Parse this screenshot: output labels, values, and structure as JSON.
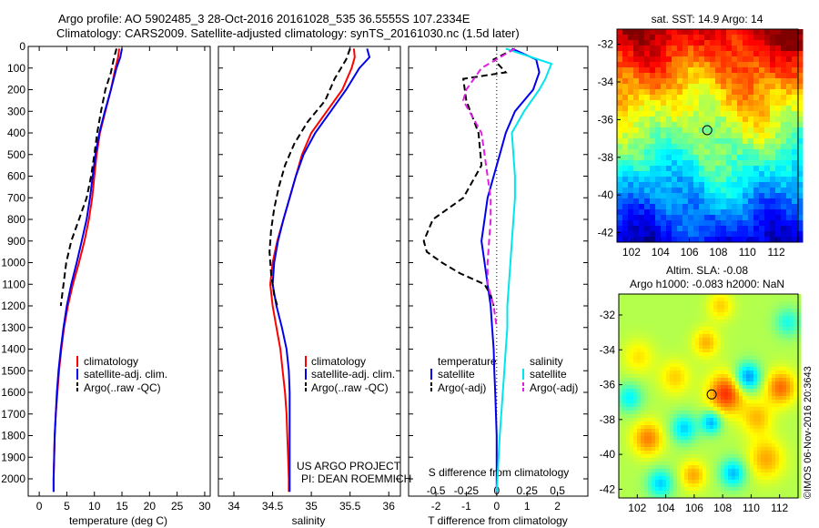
{
  "header": {
    "line1": "Argo profile: AO 5902485_3 28-Oct-2016 20161028_535 36.5555S 107.2334E",
    "line2": "Climatology: CARS2009. Satellite-adjusted climatology: synTS_20161030.nc (1.5d later)"
  },
  "credit": "©IMOS 06-Nov-2016 20:3643",
  "project": {
    "line1": "US ARGO PROJECT",
    "line2": "PI: DEAN ROEMMICH"
  },
  "colors": {
    "red": "#ff0000",
    "blue": "#0000ee",
    "black": "#000000",
    "cyan": "#00e5ee",
    "magenta": "#e020e0"
  },
  "chart_data": [
    {
      "type": "line",
      "xlabel": "temperature (deg C)",
      "ylabel": "",
      "xlim": [
        -2,
        31
      ],
      "ylim": [
        2080,
        0
      ],
      "xticks": [
        "0",
        "5",
        "10",
        "15",
        "20",
        "25",
        "30"
      ],
      "yticks": [
        "0",
        "100",
        "200",
        "300",
        "400",
        "500",
        "600",
        "700",
        "800",
        "900",
        "1000",
        "1100",
        "1200",
        "1300",
        "1400",
        "1500",
        "1600",
        "1700",
        "1800",
        "1900",
        "2000"
      ],
      "legend": [
        "climatology",
        "satellite-adj. clim.",
        "Argo(..raw -QC)"
      ],
      "series": [
        {
          "name": "climatology",
          "color": "red",
          "dash": "solid",
          "x": [
            14.5,
            14.3,
            13.8,
            13.0,
            12.0,
            11.0,
            10.4,
            10.0,
            9.6,
            9.0,
            8.2,
            7.2,
            6.1,
            5.2,
            4.5,
            4.0,
            3.6,
            3.3,
            3.0,
            2.8,
            2.7,
            2.6,
            2.6
          ],
          "y": [
            10,
            50,
            100,
            200,
            300,
            400,
            500,
            600,
            700,
            800,
            900,
            1000,
            1100,
            1200,
            1300,
            1400,
            1500,
            1600,
            1700,
            1800,
            1900,
            2000,
            2060
          ]
        },
        {
          "name": "satellite-adj. clim.",
          "color": "blue",
          "dash": "solid",
          "x": [
            15.0,
            14.7,
            14.0,
            13.0,
            11.9,
            10.9,
            10.2,
            9.7,
            9.2,
            8.6,
            7.7,
            6.8,
            5.8,
            5.0,
            4.4,
            3.9,
            3.5,
            3.2,
            3.0,
            2.8,
            2.7,
            2.6,
            2.6
          ],
          "y": [
            10,
            50,
            100,
            200,
            300,
            400,
            500,
            600,
            700,
            800,
            900,
            1000,
            1100,
            1200,
            1300,
            1400,
            1500,
            1600,
            1700,
            1800,
            1900,
            2000,
            2060
          ]
        },
        {
          "name": "Argo(..raw -QC)",
          "color": "black",
          "dash": "dashed",
          "x": [
            14.0,
            13.5,
            13.0,
            12.0,
            11.2,
            10.5,
            10.0,
            9.4,
            8.6,
            7.2,
            5.8,
            4.9,
            4.4,
            3.9
          ],
          "y": [
            10,
            60,
            120,
            200,
            300,
            400,
            500,
            600,
            700,
            800,
            900,
            1000,
            1100,
            1200
          ]
        }
      ]
    },
    {
      "type": "line",
      "xlabel": "salinity",
      "ylabel": "",
      "xlim": [
        33.8,
        36.15
      ],
      "ylim": [
        2080,
        0
      ],
      "xticks": [
        "34",
        "34.5",
        "35",
        "35.5",
        "36"
      ],
      "legend": [
        "climatology",
        "satellite-adj. clim.",
        "Argo(..raw -QC)"
      ],
      "series": [
        {
          "name": "climatology",
          "color": "red",
          "dash": "solid",
          "x": [
            35.55,
            35.56,
            35.52,
            35.4,
            35.2,
            35.0,
            34.88,
            34.8,
            34.72,
            34.64,
            34.56,
            34.5,
            34.47,
            34.5,
            34.55,
            34.6,
            34.63,
            34.66,
            34.68,
            34.69,
            34.7,
            34.71,
            34.71
          ],
          "y": [
            10,
            50,
            100,
            200,
            300,
            400,
            500,
            600,
            700,
            800,
            900,
            1000,
            1100,
            1200,
            1300,
            1400,
            1500,
            1600,
            1700,
            1800,
            1900,
            2000,
            2060
          ]
        },
        {
          "name": "satellite-adj. clim.",
          "color": "blue",
          "dash": "solid",
          "x": [
            35.72,
            35.75,
            35.62,
            35.45,
            35.25,
            35.05,
            34.9,
            34.8,
            34.72,
            34.64,
            34.57,
            34.52,
            34.5,
            34.55,
            34.62,
            34.68,
            34.71,
            34.72,
            34.72,
            34.72,
            34.72,
            34.72,
            34.72
          ],
          "y": [
            10,
            50,
            100,
            200,
            300,
            400,
            500,
            600,
            700,
            800,
            900,
            1000,
            1100,
            1200,
            1300,
            1400,
            1500,
            1600,
            1700,
            1800,
            1900,
            2000,
            2060
          ]
        },
        {
          "name": "Argo(..raw -QC)",
          "color": "black",
          "dash": "dashed",
          "x": [
            35.5,
            35.45,
            35.3,
            35.18,
            34.95,
            34.78,
            34.66,
            34.58,
            34.52,
            34.48,
            34.46,
            34.48,
            34.52,
            34.56
          ],
          "y": [
            10,
            60,
            150,
            250,
            350,
            450,
            550,
            650,
            750,
            850,
            950,
            1050,
            1150,
            1200
          ]
        }
      ]
    },
    {
      "type": "line",
      "xlabel": "T difference from climatology",
      "xlabel_top": "S difference from climatology",
      "xlim": [
        -2.9,
        3.0
      ],
      "ylim": [
        2080,
        0
      ],
      "xticks": [
        "-2",
        "-1",
        "0",
        "1",
        "2"
      ],
      "xticks_top": [
        "-0.5",
        "-0.25",
        "0",
        "0.25",
        "0.5"
      ],
      "legend_headers": [
        "temperature",
        "salinity"
      ],
      "legend": [
        "satellite",
        "Argo(-adj)",
        "satellite",
        "Argo(-adj)"
      ],
      "series": [
        {
          "name": "satellite",
          "color": "blue",
          "dash": "solid",
          "x": [
            0.5,
            1.3,
            1.4,
            1.2,
            0.6,
            0.3,
            0.1,
            -0.1,
            -0.3,
            -0.4,
            -0.5,
            -0.4,
            -0.3,
            -0.2,
            -0.15,
            -0.1,
            -0.08,
            -0.05,
            0.0,
            0.0
          ],
          "y": [
            10,
            60,
            120,
            200,
            300,
            400,
            500,
            600,
            700,
            800,
            900,
            1000,
            1100,
            1200,
            1300,
            1400,
            1500,
            1600,
            1800,
            2060
          ]
        },
        {
          "name": "Argo(-adj)",
          "color": "black",
          "dash": "dashed",
          "x": [
            0.6,
            -0.1,
            0.3,
            -1.1,
            -1.0,
            -0.6,
            -0.5,
            -1.1,
            -2.1,
            -2.4,
            -2.3,
            -1.8,
            -1.2,
            -0.4,
            -0.2,
            -0.1
          ],
          "y": [
            10,
            60,
            120,
            150,
            250,
            400,
            550,
            700,
            800,
            900,
            950,
            1000,
            1050,
            1100,
            1150,
            1200
          ]
        },
        {
          "name": "satellite",
          "color": "cyan",
          "dash": "solid",
          "x": [
            0.3,
            1.8,
            1.6,
            1.4,
            0.9,
            0.5,
            0.55,
            0.6,
            0.6,
            0.55,
            0.5,
            0.45,
            0.4,
            0.35,
            0.35,
            0.3,
            0.25,
            0.1,
            0.0
          ],
          "y": [
            10,
            80,
            150,
            200,
            300,
            400,
            500,
            600,
            700,
            800,
            900,
            1000,
            1100,
            1200,
            1300,
            1400,
            1500,
            1800,
            2060
          ]
        },
        {
          "name": "Argo(-adj)",
          "color": "magenta",
          "dash": "dashed",
          "x": [
            0.6,
            -0.5,
            -1.0,
            -1.1,
            -0.5,
            -0.4,
            -0.3,
            -0.2,
            -0.2,
            -0.25,
            -0.3,
            -0.3,
            -0.2,
            -0.1,
            0.0
          ],
          "y": [
            10,
            100,
            200,
            250,
            400,
            500,
            600,
            700,
            800,
            900,
            1000,
            1100,
            1150,
            1200,
            1300
          ]
        }
      ]
    },
    {
      "type": "heatmap",
      "title": "sat. SST: 14.9 Argo: 14",
      "xlim": [
        101,
        113.5
      ],
      "ylim": [
        -42.5,
        -31.2
      ],
      "xticks": [
        "102",
        "104",
        "106",
        "108",
        "110",
        "112"
      ],
      "yticks": [
        "-32",
        "-34",
        "-36",
        "-38",
        "-40",
        "-42"
      ],
      "marker": {
        "lon": 107.23,
        "lat": -36.56
      }
    },
    {
      "type": "heatmap",
      "title": "Altim. SLA: -0.08",
      "subtitle": "Argo h1000: -0.083 h2000: NaN",
      "xlim": [
        100.7,
        113.3
      ],
      "ylim": [
        -42.5,
        -30.8
      ],
      "xticks": [
        "102",
        "104",
        "106",
        "108",
        "110",
        "112"
      ],
      "yticks": [
        "-32",
        "-34",
        "-36",
        "-38",
        "-40",
        "-42"
      ],
      "marker": {
        "lon": 107.23,
        "lat": -36.56
      }
    }
  ]
}
